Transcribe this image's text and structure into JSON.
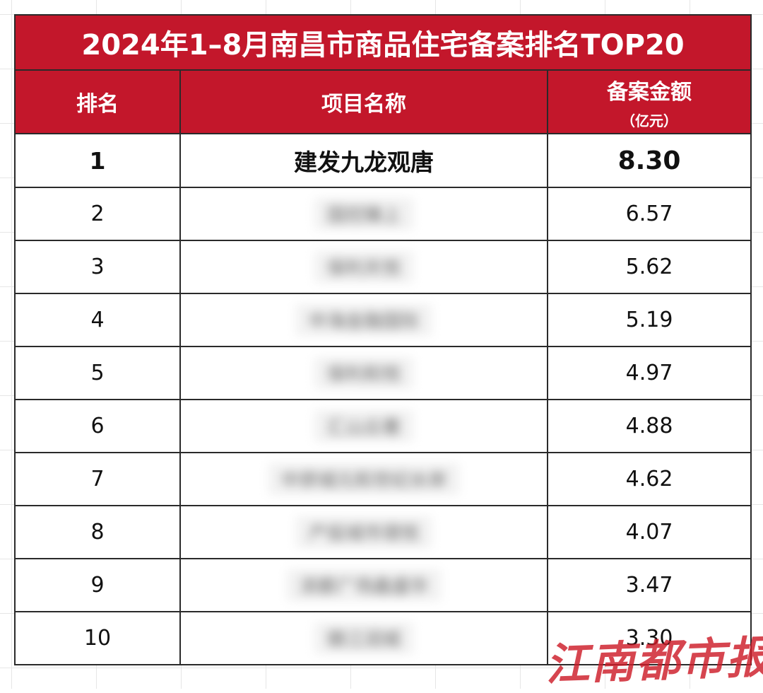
{
  "table": {
    "title": "2024年1–8月南昌市商品住宅备案排名TOP20",
    "headers": {
      "rank": "排名",
      "project": "项目名称",
      "amount": "备案金额",
      "amount_unit": "（亿元）"
    },
    "rows": [
      {
        "rank": "1",
        "project": "建发九龙观唐",
        "amount": "8.30"
      },
      {
        "rank": "2",
        "project": "国控臻上",
        "amount": "6.57"
      },
      {
        "rank": "3",
        "project": "保利天悦",
        "amount": "5.62"
      },
      {
        "rank": "4",
        "project": "中海金融国际",
        "amount": "5.19"
      },
      {
        "rank": "5",
        "project": "保利和悦",
        "amount": "4.97"
      },
      {
        "rank": "6",
        "project": "汇山云著",
        "amount": "4.88"
      },
      {
        "rank": "7",
        "project": "中骅城元和世纪水岸",
        "amount": "4.62"
      },
      {
        "rank": "8",
        "project": "产投城市璟悦",
        "amount": "4.07"
      },
      {
        "rank": "9",
        "project": "滨都广场鑫盛华",
        "amount": "3.47"
      },
      {
        "rank": "10",
        "project": "赣江润城",
        "amount": "3.30"
      }
    ]
  },
  "watermark": {
    "text": "江南都市报",
    "color": "#cd1c28"
  },
  "colors": {
    "header_red": "#c3172b",
    "border": "#2a2a2a"
  }
}
